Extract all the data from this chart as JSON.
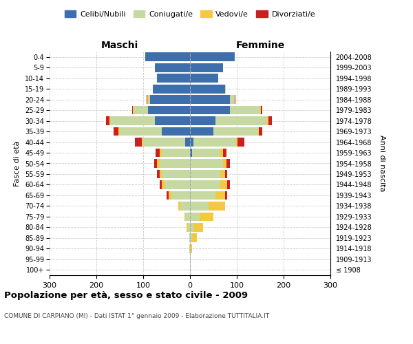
{
  "age_groups": [
    "100+",
    "95-99",
    "90-94",
    "85-89",
    "80-84",
    "75-79",
    "70-74",
    "65-69",
    "60-64",
    "55-59",
    "50-54",
    "45-49",
    "40-44",
    "35-39",
    "30-34",
    "25-29",
    "20-24",
    "15-19",
    "10-14",
    "5-9",
    "0-4"
  ],
  "birth_years": [
    "≤ 1908",
    "1909-1913",
    "1914-1918",
    "1919-1923",
    "1924-1928",
    "1929-1933",
    "1934-1938",
    "1939-1943",
    "1944-1948",
    "1949-1953",
    "1954-1958",
    "1959-1963",
    "1964-1968",
    "1969-1973",
    "1974-1978",
    "1979-1983",
    "1984-1988",
    "1989-1993",
    "1994-1998",
    "1999-2003",
    "2004-2008"
  ],
  "colors": {
    "celibi": "#3d6fad",
    "coniugati": "#c5d9a0",
    "vedovi": "#f5c842",
    "divorziati": "#cc2020"
  },
  "xlim": 300,
  "title": "Popolazione per età, sesso e stato civile - 2009",
  "subtitle": "COMUNE DI CARPIANO (MI) - Dati ISTAT 1° gennaio 2009 - Elaborazione TUTTITALIA.IT",
  "ylabel_left": "Fasce di età",
  "ylabel_right": "Anni di nascita",
  "xlabel_maschi": "Maschi",
  "xlabel_femmine": "Femmine",
  "legend_labels": [
    "Celibi/Nubili",
    "Coniugati/e",
    "Vedovi/e",
    "Divorziati/e"
  ],
  "m_cel": [
    0,
    0,
    0,
    0,
    0,
    0,
    0,
    0,
    0,
    0,
    0,
    0,
    10,
    60,
    75,
    90,
    85,
    80,
    70,
    75,
    95
  ],
  "m_con": [
    0,
    0,
    1,
    2,
    5,
    10,
    20,
    40,
    55,
    60,
    65,
    60,
    90,
    90,
    95,
    30,
    5,
    0,
    0,
    0,
    0
  ],
  "m_ved": [
    0,
    0,
    0,
    0,
    2,
    2,
    5,
    5,
    5,
    5,
    5,
    5,
    3,
    3,
    2,
    2,
    1,
    0,
    0,
    0,
    0
  ],
  "m_div": [
    0,
    0,
    0,
    0,
    0,
    0,
    0,
    5,
    5,
    5,
    7,
    8,
    15,
    10,
    8,
    2,
    1,
    0,
    0,
    0,
    0
  ],
  "f_nub": [
    0,
    0,
    0,
    0,
    0,
    0,
    0,
    0,
    0,
    0,
    0,
    5,
    8,
    50,
    55,
    85,
    85,
    75,
    60,
    70,
    95
  ],
  "f_con": [
    0,
    1,
    2,
    5,
    8,
    20,
    40,
    55,
    65,
    65,
    70,
    60,
    90,
    95,
    110,
    65,
    10,
    2,
    0,
    0,
    0
  ],
  "f_ved": [
    0,
    1,
    3,
    10,
    20,
    30,
    35,
    20,
    15,
    10,
    8,
    5,
    3,
    2,
    2,
    2,
    1,
    0,
    0,
    0,
    0
  ],
  "f_div": [
    0,
    0,
    0,
    0,
    0,
    0,
    0,
    5,
    5,
    5,
    8,
    8,
    15,
    8,
    8,
    2,
    1,
    0,
    0,
    0,
    0
  ]
}
